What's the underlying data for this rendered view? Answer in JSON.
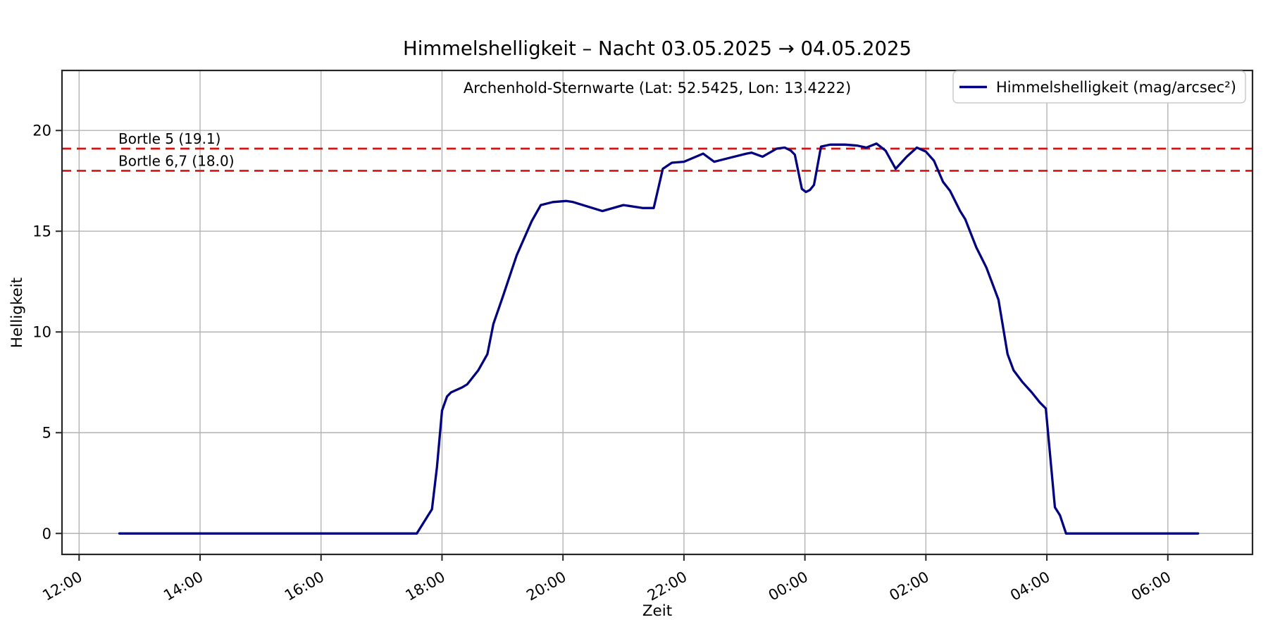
{
  "chart_data": {
    "type": "line",
    "title": "Himmelshelligkeit – Nacht 03.05.2025 → 04.05.2025",
    "subtitle": "Archenhold-Sternwarte (Lat: 52.5425, Lon: 13.4222)",
    "xlabel": "Zeit",
    "ylabel": "Helligkeit",
    "grid": true,
    "legend_position": "upper right",
    "x_tick_labels": [
      "12:00",
      "14:00",
      "16:00",
      "18:00",
      "20:00",
      "22:00",
      "00:00",
      "02:00",
      "04:00",
      "06:00"
    ],
    "y_ticks": [
      0,
      5,
      10,
      15,
      20
    ],
    "xlim_hours": [
      -0.283,
      19.4
    ],
    "ylim": [
      -1.04,
      22.98
    ],
    "reference_lines": [
      {
        "label": "Bortle 5 (19.1)",
        "value": 19.1,
        "color": "#d21414",
        "style": "dashed"
      },
      {
        "label": "Bortle 6,7 (18.0)",
        "value": 18.0,
        "color": "#d21414",
        "style": "dashed"
      }
    ],
    "series": [
      {
        "name": "Himmelshelligkeit (mag/arcsec²)",
        "color": "#000080",
        "points": [
          [
            "12:40",
            0
          ],
          [
            "13:00",
            0
          ],
          [
            "13:30",
            0
          ],
          [
            "14:00",
            0
          ],
          [
            "14:30",
            0
          ],
          [
            "15:00",
            0
          ],
          [
            "15:30",
            0
          ],
          [
            "16:00",
            0
          ],
          [
            "16:30",
            0
          ],
          [
            "17:00",
            0
          ],
          [
            "17:20",
            0
          ],
          [
            "17:35",
            0
          ],
          [
            "17:50",
            1.2
          ],
          [
            "17:55",
            3.3
          ],
          [
            "18:00",
            6.1
          ],
          [
            "18:05",
            6.8
          ],
          [
            "18:09",
            7.0
          ],
          [
            "18:20",
            7.25
          ],
          [
            "18:25",
            7.4
          ],
          [
            "18:36",
            8.1
          ],
          [
            "18:45",
            8.9
          ],
          [
            "18:51",
            10.4
          ],
          [
            "19:00",
            11.7
          ],
          [
            "19:14",
            13.8
          ],
          [
            "19:29",
            15.5
          ],
          [
            "19:38",
            16.3
          ],
          [
            "19:50",
            16.45
          ],
          [
            "20:03",
            16.5
          ],
          [
            "20:10",
            16.45
          ],
          [
            "20:39",
            16.0
          ],
          [
            "21:00",
            16.3
          ],
          [
            "21:19",
            16.15
          ],
          [
            "21:30",
            16.15
          ],
          [
            "21:39",
            18.1
          ],
          [
            "21:48",
            18.4
          ],
          [
            "22:00",
            18.45
          ],
          [
            "22:19",
            18.85
          ],
          [
            "22:30",
            18.45
          ],
          [
            "22:46",
            18.65
          ],
          [
            "23:02",
            18.85
          ],
          [
            "23:07",
            18.9
          ],
          [
            "23:18",
            18.7
          ],
          [
            "23:32",
            19.1
          ],
          [
            "23:40",
            19.15
          ],
          [
            "23:46",
            19.0
          ],
          [
            "23:50",
            18.8
          ],
          [
            "23:57",
            17.1
          ],
          [
            "00:01",
            16.95
          ],
          [
            "00:05",
            17.05
          ],
          [
            "00:09",
            17.3
          ],
          [
            "00:16",
            19.2
          ],
          [
            "00:25",
            19.3
          ],
          [
            "00:40",
            19.3
          ],
          [
            "00:52",
            19.25
          ],
          [
            "01:01",
            19.15
          ],
          [
            "01:11",
            19.35
          ],
          [
            "01:20",
            19.0
          ],
          [
            "01:30",
            18.1
          ],
          [
            "01:41",
            18.7
          ],
          [
            "01:51",
            19.15
          ],
          [
            "02:00",
            18.95
          ],
          [
            "02:08",
            18.5
          ],
          [
            "02:17",
            17.45
          ],
          [
            "02:24",
            17.0
          ],
          [
            "02:34",
            16.0
          ],
          [
            "02:39",
            15.6
          ],
          [
            "02:50",
            14.2
          ],
          [
            "03:00",
            13.2
          ],
          [
            "03:12",
            11.6
          ],
          [
            "03:21",
            8.9
          ],
          [
            "03:27",
            8.1
          ],
          [
            "03:36",
            7.5
          ],
          [
            "03:45",
            7.0
          ],
          [
            "03:53",
            6.5
          ],
          [
            "03:59",
            6.2
          ],
          [
            "04:08",
            1.3
          ],
          [
            "04:13",
            0.9
          ],
          [
            "04:19",
            0
          ],
          [
            "04:40",
            0
          ],
          [
            "05:10",
            0
          ],
          [
            "05:40",
            0
          ],
          [
            "06:10",
            0
          ],
          [
            "06:30",
            0
          ]
        ]
      }
    ]
  },
  "legend": {
    "entry_label": "Himmelshelligkeit (mag/arcsec²)"
  },
  "colors": {
    "line": "#000080",
    "reference": "#d21414",
    "grid": "#b3b3b3",
    "spine": "#262626",
    "background": "#ffffff",
    "legend_border": "#cccccc"
  }
}
